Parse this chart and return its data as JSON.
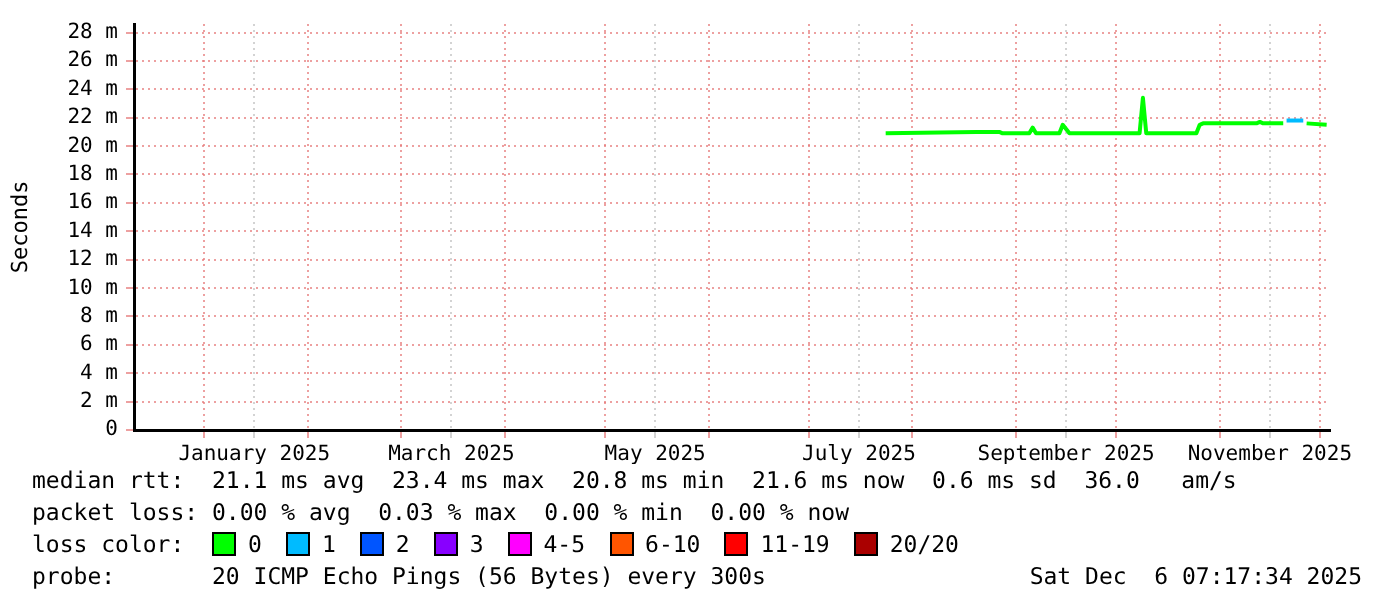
{
  "chart_data": {
    "type": "line",
    "ylabel": "Seconds",
    "grid": true,
    "legend": "bottom",
    "legend_title": "loss color:",
    "xlim": [
      "2024-12-11",
      "2025-12-04"
    ],
    "xticks": [
      {
        "value": "2025-01-01",
        "label": null
      },
      {
        "value": "2025-01-16",
        "label": "January 2025"
      },
      {
        "value": "2025-02-01",
        "label": null
      },
      {
        "value": "2025-03-01",
        "label": null
      },
      {
        "value": "2025-03-16",
        "label": "March 2025"
      },
      {
        "value": "2025-04-01",
        "label": null
      },
      {
        "value": "2025-05-01",
        "label": null
      },
      {
        "value": "2025-05-16",
        "label": "May 2025"
      },
      {
        "value": "2025-06-01",
        "label": null
      },
      {
        "value": "2025-07-01",
        "label": null
      },
      {
        "value": "2025-07-16",
        "label": "July 2025"
      },
      {
        "value": "2025-08-01",
        "label": null
      },
      {
        "value": "2025-09-01",
        "label": null
      },
      {
        "value": "2025-09-16",
        "label": "September 2025"
      },
      {
        "value": "2025-10-01",
        "label": null
      },
      {
        "value": "2025-11-01",
        "label": null
      },
      {
        "value": "2025-11-16",
        "label": "November 2025"
      },
      {
        "value": "2025-12-01",
        "label": null
      }
    ],
    "ylim": [
      0,
      28.6
    ],
    "yticks": [
      0,
      {
        "value": 2,
        "label": "2 m"
      },
      {
        "value": 4,
        "label": "4 m"
      },
      {
        "value": 6,
        "label": "6 m"
      },
      {
        "value": 8,
        "label": "8 m"
      },
      {
        "value": 10,
        "label": "10 m"
      },
      {
        "value": 12,
        "label": "12 m"
      },
      {
        "value": 14,
        "label": "14 m"
      },
      {
        "value": 16,
        "label": "16 m"
      },
      {
        "value": 18,
        "label": "18 m"
      },
      {
        "value": 20,
        "label": "20 m"
      },
      {
        "value": 22,
        "label": "22 m"
      },
      {
        "value": 24,
        "label": "24 m"
      },
      {
        "value": 26,
        "label": "26 m"
      },
      {
        "value": 28,
        "label": "28 m"
      }
    ],
    "series": [
      {
        "name": "0",
        "color": "#00ff00",
        "x": [
          "2025-07-24",
          "2025-08-20",
          "2025-08-27",
          "2025-08-28",
          "2025-09-05",
          "2025-09-06",
          "2025-09-07",
          "2025-09-14",
          "2025-09-15",
          "2025-09-17",
          "2025-10-08",
          "2025-10-09",
          "2025-10-10",
          "2025-10-25",
          "2025-10-26",
          "2025-10-27",
          "2025-11-12",
          "2025-11-13",
          "2025-11-14",
          "2025-11-20",
          "2025-11-21",
          "2025-11-26",
          "2025-11-27",
          "2025-12-03"
        ],
        "values": [
          20.9,
          21.0,
          21.0,
          20.9,
          20.9,
          21.3,
          20.9,
          20.9,
          21.5,
          20.9,
          20.9,
          23.4,
          20.9,
          20.9,
          21.5,
          21.6,
          21.6,
          21.7,
          21.6,
          21.6,
          null,
          null,
          21.6,
          21.5
        ]
      },
      {
        "name": "1",
        "color": "#00bbff",
        "x": [
          "2025-11-21",
          "2025-11-26"
        ],
        "values": [
          21.8,
          21.8
        ]
      },
      {
        "name": "2",
        "color": "#0055ff"
      },
      {
        "name": "3",
        "color": "#8800ff"
      },
      {
        "name": "4-5",
        "color": "#ff00ff"
      },
      {
        "name": "6-10",
        "color": "#ff5500"
      },
      {
        "name": "11-19",
        "color": "#ff0000"
      },
      {
        "name": "20/20",
        "color": "#aa0000"
      }
    ],
    "annotations": [
      "median rtt:  21.1 ms avg  23.4 ms max  20.8 ms min  21.6 ms now  0.6 ms sd  36.0   am/s",
      "packet loss: 0.00 % avg  0.03 % max  0.00 % min  0.00 % now",
      "probe:       20 ICMP Echo Pings (56 Bytes) every 300s",
      "Sat Dec  6 07:17:34 2025"
    ]
  }
}
